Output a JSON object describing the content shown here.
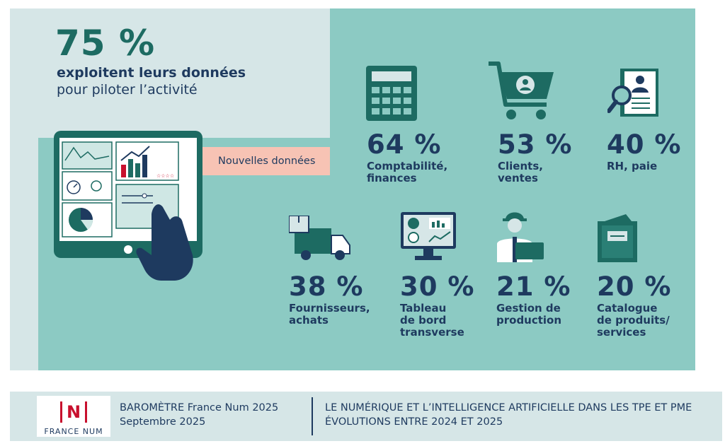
{
  "headline": {
    "percent": "75 %",
    "line1": "exploitent leurs données",
    "line2": "pour piloter l’activité"
  },
  "tag": "Nouvelles données",
  "stats": [
    {
      "percent": "64 %",
      "label": "Comptabilité,\nfinances",
      "icon": "calculator-icon"
    },
    {
      "percent": "53 %",
      "label": "Clients,\nventes",
      "icon": "shopping-cart-icon"
    },
    {
      "percent": "40 %",
      "label": "RH, paie",
      "icon": "hr-document-icon"
    },
    {
      "percent": "38 %",
      "label": "Fournisseurs,\nachats",
      "icon": "delivery-truck-icon"
    },
    {
      "percent": "30 %",
      "label": "Tableau\nde bord\ntransverse",
      "icon": "dashboard-monitor-icon"
    },
    {
      "percent": "21 %",
      "label": "Gestion de\nproduction",
      "icon": "worker-icon"
    },
    {
      "percent": "20 %",
      "label": "Catalogue\nde produits/\nservices",
      "icon": "catalogue-book-icon"
    }
  ],
  "footer": {
    "logo_letter": "N",
    "logo_text": "FRANCE NUM",
    "left_line1": "BAROMÈTRE France Num 2025",
    "left_line2": "Septembre 2025",
    "right_line1": "LE NUMÉRIQUE ET L’INTELLIGENCE ARTIFICIELLE DANS LES TPE ET PME",
    "right_line2": "ÉVOLUTIONS ENTRE 2024 ET 2025"
  },
  "colors": {
    "main_panel": "#8ccac3",
    "light_panel": "#d6e6e7",
    "dark_teal": "#1d6b62",
    "navy": "#1e3a5f",
    "salmon": "#f7c3b4",
    "brand_red": "#c8102e"
  }
}
